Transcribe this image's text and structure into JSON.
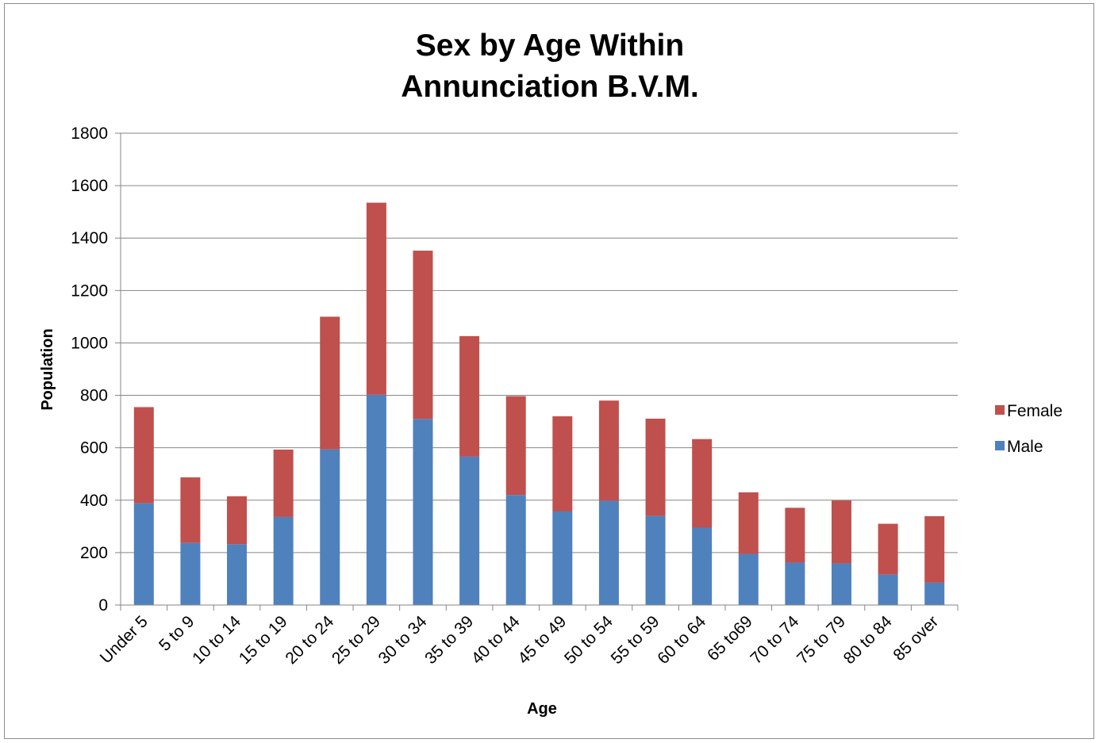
{
  "chart_data": {
    "type": "bar",
    "stacked": true,
    "title_lines": [
      "Sex by Age Within",
      "Annunciation B.V.M."
    ],
    "xlabel": "Age",
    "ylabel": "Population",
    "ylim": [
      0,
      1800
    ],
    "yticks": [
      0,
      200,
      400,
      600,
      800,
      1000,
      1200,
      1400,
      1600,
      1800
    ],
    "grid": true,
    "legend_position": "right",
    "categories": [
      "Under 5",
      "5 to 9",
      "10 to 14",
      "15 to 19",
      "20 to 24",
      "25 to 29",
      "30 to 34",
      "35 to 39",
      "40 to 44",
      "45 to 49",
      "50 to 54",
      "55 to 59",
      "60 to 64",
      "65 to69",
      "70 to 74",
      "75 to 79",
      "80 to 84",
      "85 over"
    ],
    "series": [
      {
        "name": "Male",
        "color": "#4f81bd",
        "values": [
          388,
          237,
          232,
          336,
          594,
          802,
          710,
          566,
          420,
          357,
          398,
          340,
          295,
          195,
          162,
          159,
          116,
          85
        ]
      },
      {
        "name": "Female",
        "color": "#c0504d",
        "values": [
          367,
          250,
          183,
          257,
          506,
          733,
          642,
          460,
          377,
          363,
          382,
          371,
          338,
          235,
          209,
          240,
          194,
          254
        ]
      }
    ]
  }
}
